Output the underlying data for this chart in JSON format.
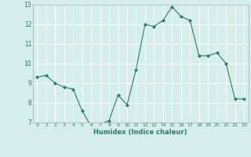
{
  "x": [
    0,
    1,
    2,
    3,
    4,
    5,
    6,
    7,
    8,
    9,
    10,
    11,
    12,
    13,
    14,
    15,
    16,
    17,
    18,
    19,
    20,
    21,
    22,
    23
  ],
  "y": [
    9.3,
    9.4,
    9.0,
    8.8,
    8.7,
    7.6,
    6.8,
    6.9,
    7.1,
    8.4,
    7.9,
    9.7,
    12.0,
    11.9,
    12.2,
    12.9,
    12.4,
    12.2,
    10.4,
    10.4,
    10.55,
    10.0,
    8.2,
    8.2
  ],
  "xlabel": "Humidex (Indice chaleur)",
  "ylim": [
    7,
    13
  ],
  "xlim": [
    -0.5,
    23.5
  ],
  "yticks": [
    7,
    8,
    9,
    10,
    11,
    12,
    13
  ],
  "xticks": [
    0,
    1,
    2,
    3,
    4,
    5,
    6,
    7,
    8,
    9,
    10,
    11,
    12,
    13,
    14,
    15,
    16,
    17,
    18,
    19,
    20,
    21,
    22,
    23
  ],
  "line_color": "#2d7a6a",
  "marker_color": "#2d7a6a",
  "bg_color": "#d5eeeb",
  "grid_color": "#ffffff",
  "grid_minor_color": "#e8f5f3"
}
